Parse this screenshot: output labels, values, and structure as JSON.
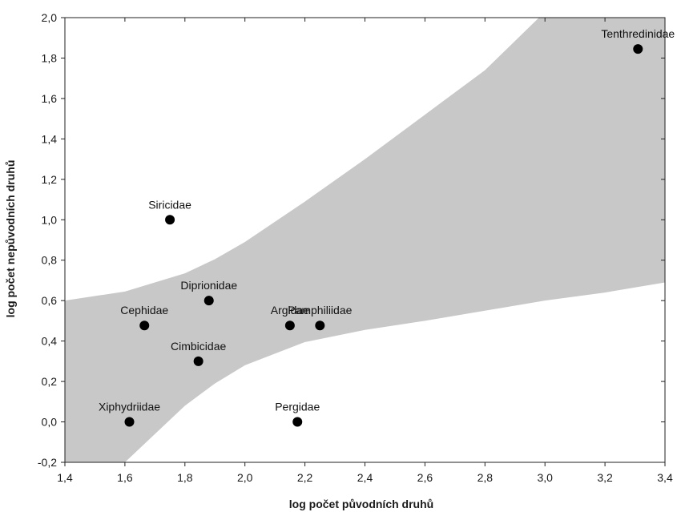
{
  "chart_data": {
    "type": "scatter",
    "xlabel": "log počet původních druhů",
    "ylabel": "log počet nepůvodních druhů",
    "xlim": [
      1.4,
      3.4
    ],
    "ylim": [
      -0.2,
      2.0
    ],
    "x_ticks": [
      1.4,
      1.6,
      1.8,
      2.0,
      2.2,
      2.4,
      2.6,
      2.8,
      3.0,
      3.2,
      3.4
    ],
    "x_tick_labels": [
      "1,4",
      "1,6",
      "1,8",
      "2,0",
      "2,2",
      "2,4",
      "2,6",
      "2,8",
      "3,0",
      "3,2",
      "3,4"
    ],
    "y_ticks": [
      -0.2,
      0.0,
      0.2,
      0.4,
      0.6,
      0.8,
      1.0,
      1.2,
      1.4,
      1.6,
      1.8,
      2.0
    ],
    "y_tick_labels": [
      "-0,2",
      "0,0",
      "0,2",
      "0,4",
      "0,6",
      "0,8",
      "1,0",
      "1,2",
      "1,4",
      "1,6",
      "1,8",
      "2,0"
    ],
    "grid": false,
    "points": [
      {
        "label": "Tenthredinidae",
        "x": 3.31,
        "y": 1.845
      },
      {
        "label": "Siricidae",
        "x": 1.75,
        "y": 1.0
      },
      {
        "label": "Diprionidae",
        "x": 1.88,
        "y": 0.6
      },
      {
        "label": "Cephidae",
        "x": 1.665,
        "y": 0.477
      },
      {
        "label": "Argidae",
        "x": 2.15,
        "y": 0.477
      },
      {
        "label": "Pamphiliidae",
        "x": 2.25,
        "y": 0.477
      },
      {
        "label": "Cimbicidae",
        "x": 1.845,
        "y": 0.3
      },
      {
        "label": "Xiphydriidae",
        "x": 1.615,
        "y": 0.0
      },
      {
        "label": "Pergidae",
        "x": 2.175,
        "y": 0.0
      }
    ],
    "band": {
      "color": "#c8c8c8",
      "upper": [
        [
          1.4,
          0.6
        ],
        [
          1.6,
          0.645
        ],
        [
          1.8,
          0.735
        ],
        [
          1.9,
          0.805
        ],
        [
          2.0,
          0.89
        ],
        [
          2.2,
          1.09
        ],
        [
          2.4,
          1.3
        ],
        [
          2.6,
          1.52
        ],
        [
          2.8,
          1.74
        ],
        [
          2.98,
          2.0
        ]
      ],
      "lower": [
        [
          1.6,
          -0.2
        ],
        [
          1.8,
          0.08
        ],
        [
          1.9,
          0.19
        ],
        [
          2.0,
          0.28
        ],
        [
          2.2,
          0.395
        ],
        [
          2.4,
          0.455
        ],
        [
          2.6,
          0.5
        ],
        [
          2.8,
          0.55
        ],
        [
          3.0,
          0.6
        ],
        [
          3.2,
          0.64
        ],
        [
          3.4,
          0.69
        ]
      ]
    },
    "point_color": "#000000"
  }
}
